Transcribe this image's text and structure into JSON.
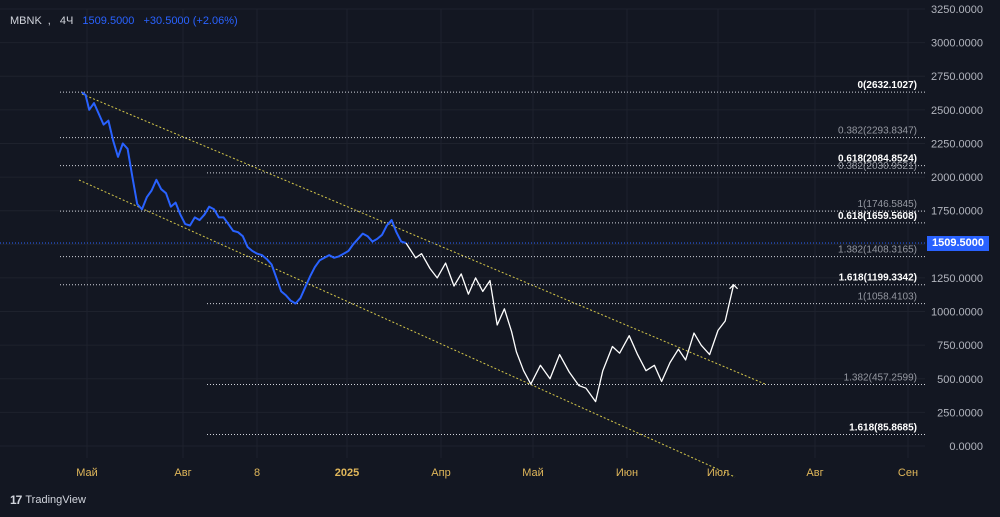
{
  "header": {
    "symbol": "MBNK",
    "timeframe": "4Ч",
    "last_price": "1509.5000",
    "change": "+30.5000 (+2.06%)"
  },
  "price_tag": "1509.5000",
  "branding": "TradingView",
  "colors": {
    "background": "#131722",
    "series": "#2962ff",
    "projection": "#ffffff",
    "channel": "#d6c84a",
    "fib_levels": "#d1d4dc",
    "axis_text": "#b2b5be",
    "month_labels": "#e0b75a"
  },
  "chart_data": {
    "type": "line",
    "y_axis": {
      "ticks": [
        "3250.0000",
        "3000.0000",
        "2750.0000",
        "2500.0000",
        "2250.0000",
        "2000.0000",
        "1750.0000",
        "1500.0000",
        "1250.0000",
        "1000.0000",
        "750.0000",
        "500.0000",
        "250.0000",
        "0.0000"
      ],
      "range": [
        -50,
        3270
      ]
    },
    "x_axis": {
      "ticks": [
        "Май",
        "Авг",
        "8",
        "2025",
        "Апр",
        "Май",
        "Июн",
        "Июл",
        "Авг",
        "Сен"
      ]
    },
    "fib_levels": [
      {
        "label": "0(2632.1027)",
        "value": 2632.1027,
        "bold": true
      },
      {
        "label": "0.382(2293.8347)",
        "value": 2293.8347,
        "bold": false
      },
      {
        "label": "0.618(2084.8524)",
        "value": 2084.8524,
        "bold": true
      },
      {
        "label": "0.382(2030.9521)",
        "value": 2030.9521,
        "bold": false
      },
      {
        "label": "1(1746.5845)",
        "value": 1746.5845,
        "bold": false
      },
      {
        "label": "0.618(1659.5608)",
        "value": 1659.5608,
        "bold": true
      },
      {
        "label": "1.382(1408.3165)",
        "value": 1408.3165,
        "bold": false
      },
      {
        "label": "1.618(1199.3342)",
        "value": 1199.3342,
        "bold": true
      },
      {
        "label": "1(1058.4103)",
        "value": 1058.4103,
        "bold": false
      },
      {
        "label": "1.382(457.2599)",
        "value": 457.2599,
        "bold": false
      },
      {
        "label": "1.618(85.8685)",
        "value": 85.8685,
        "bold": true
      }
    ],
    "current_price": 1509.5,
    "series": [
      {
        "role": "price",
        "points": [
          [
            0,
            2630
          ],
          [
            3,
            2610
          ],
          [
            6,
            2500
          ],
          [
            10,
            2550
          ],
          [
            14,
            2470
          ],
          [
            18,
            2390
          ],
          [
            22,
            2420
          ],
          [
            26,
            2270
          ],
          [
            30,
            2150
          ],
          [
            34,
            2250
          ],
          [
            38,
            2210
          ],
          [
            42,
            2000
          ],
          [
            46,
            1800
          ],
          [
            50,
            1760
          ],
          [
            54,
            1850
          ],
          [
            58,
            1900
          ],
          [
            62,
            1980
          ],
          [
            66,
            1910
          ],
          [
            70,
            1880
          ],
          [
            74,
            1780
          ],
          [
            78,
            1810
          ],
          [
            82,
            1720
          ],
          [
            86,
            1650
          ],
          [
            90,
            1640
          ],
          [
            94,
            1700
          ],
          [
            98,
            1680
          ],
          [
            102,
            1720
          ],
          [
            106,
            1780
          ],
          [
            110,
            1760
          ],
          [
            114,
            1700
          ],
          [
            118,
            1700
          ],
          [
            122,
            1650
          ],
          [
            126,
            1600
          ],
          [
            130,
            1590
          ],
          [
            134,
            1560
          ],
          [
            138,
            1480
          ],
          [
            142,
            1450
          ],
          [
            146,
            1430
          ],
          [
            150,
            1420
          ],
          [
            154,
            1390
          ],
          [
            158,
            1350
          ],
          [
            162,
            1250
          ],
          [
            166,
            1150
          ],
          [
            170,
            1120
          ],
          [
            174,
            1080
          ],
          [
            178,
            1060
          ],
          [
            182,
            1100
          ],
          [
            186,
            1180
          ],
          [
            190,
            1260
          ],
          [
            194,
            1330
          ],
          [
            198,
            1380
          ],
          [
            202,
            1400
          ],
          [
            206,
            1420
          ],
          [
            210,
            1400
          ],
          [
            214,
            1410
          ],
          [
            218,
            1430
          ],
          [
            222,
            1450
          ],
          [
            226,
            1500
          ],
          [
            230,
            1540
          ],
          [
            234,
            1580
          ],
          [
            238,
            1560
          ],
          [
            242,
            1520
          ],
          [
            246,
            1540
          ],
          [
            250,
            1570
          ],
          [
            254,
            1640
          ],
          [
            258,
            1680
          ],
          [
            262,
            1590
          ],
          [
            266,
            1520
          ],
          [
            270,
            1509.5
          ]
        ]
      },
      {
        "role": "projection",
        "points": [
          [
            270,
            1509.5
          ],
          [
            278,
            1400
          ],
          [
            283,
            1430
          ],
          [
            290,
            1320
          ],
          [
            296,
            1250
          ],
          [
            303,
            1360
          ],
          [
            310,
            1190
          ],
          [
            316,
            1280
          ],
          [
            322,
            1130
          ],
          [
            328,
            1250
          ],
          [
            334,
            1150
          ],
          [
            340,
            1230
          ],
          [
            346,
            900
          ],
          [
            352,
            1020
          ],
          [
            358,
            850
          ],
          [
            362,
            700
          ],
          [
            368,
            560
          ],
          [
            374,
            460
          ],
          [
            382,
            600
          ],
          [
            390,
            500
          ],
          [
            398,
            680
          ],
          [
            406,
            550
          ],
          [
            414,
            450
          ],
          [
            420,
            430
          ],
          [
            428,
            330
          ],
          [
            434,
            560
          ],
          [
            442,
            740
          ],
          [
            448,
            690
          ],
          [
            456,
            820
          ],
          [
            463,
            680
          ],
          [
            470,
            560
          ],
          [
            477,
            600
          ],
          [
            483,
            480
          ],
          [
            490,
            620
          ],
          [
            497,
            720
          ],
          [
            503,
            640
          ],
          [
            510,
            840
          ],
          [
            516,
            750
          ],
          [
            523,
            680
          ],
          [
            530,
            860
          ],
          [
            536,
            930
          ],
          [
            543,
            1199
          ]
        ]
      }
    ]
  }
}
